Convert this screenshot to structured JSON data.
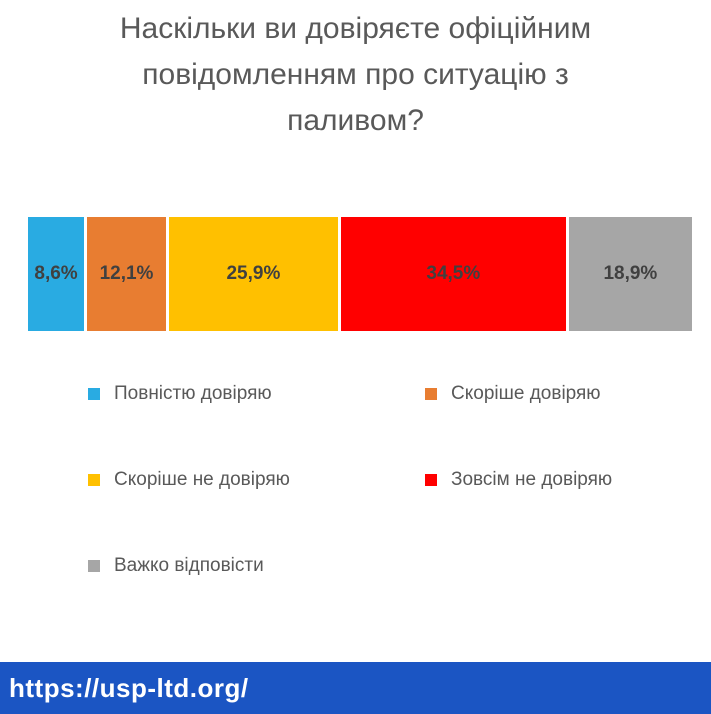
{
  "title": "Наскільки ви довіряєте офіційним повідомленням про ситуацію з паливом?",
  "title_lines": [
    "Наскільки ви довіряєте офіційним",
    "повідомленням про ситуацію з",
    "паливом?"
  ],
  "chart_data": {
    "type": "bar",
    "subtype": "horizontal-stacked-100-percent",
    "title": "Наскільки ви довіряєте офіційним повідомленням про ситуацію з паливом?",
    "categories": [
      "Повністю довіряю",
      "Скоріше довіряю",
      "Скоріше не довіряю",
      "Зовсім не довіряю",
      "Важко відповісти"
    ],
    "values": [
      8.6,
      12.1,
      25.9,
      34.5,
      18.9
    ],
    "display_labels": [
      "8,6%",
      "12,1%",
      "25,9%",
      "34,5%",
      "18,9%"
    ],
    "colors": [
      "#29ABE2",
      "#E87D31",
      "#FFC000",
      "#FF0000",
      "#A6A6A6"
    ],
    "legend_position": "bottom",
    "legend_columns": 2,
    "label_color": "#404040",
    "title_color": "#595959",
    "xlim": [
      0,
      100
    ]
  },
  "footer": {
    "url": "https://usp-ltd.org/",
    "background": "#1B55C3",
    "text_color": "#FFFFFF"
  }
}
